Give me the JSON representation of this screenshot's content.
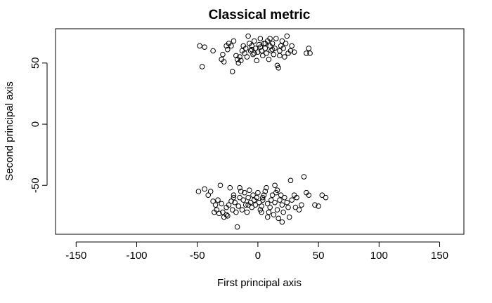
{
  "chart_data": {
    "type": "scatter",
    "title": "Classical metric",
    "xlabel": "First principal axis",
    "ylabel": "Second principal axis",
    "xlim": [
      -167,
      170
    ],
    "ylim": [
      -90,
      78
    ],
    "xticks": [
      -150,
      -100,
      -50,
      0,
      50,
      100,
      150
    ],
    "yticks": [
      -50,
      0,
      50
    ],
    "xtick_labels": [
      "-150",
      "-100",
      "-50",
      "0",
      "50",
      "100",
      "150"
    ],
    "ytick_labels": [
      "-50",
      "0",
      "50"
    ],
    "grid": false,
    "legend": "none",
    "marker": "open-circle",
    "points": [
      [
        -48,
        64
      ],
      [
        -44,
        63
      ],
      [
        -37,
        60
      ],
      [
        -46,
        47
      ],
      [
        -30,
        53
      ],
      [
        -29,
        57
      ],
      [
        -28,
        51
      ],
      [
        -26,
        64
      ],
      [
        -25,
        61
      ],
      [
        -24,
        66
      ],
      [
        -22,
        64
      ],
      [
        -21,
        43
      ],
      [
        -20,
        68
      ],
      [
        -18,
        56
      ],
      [
        -16,
        50
      ],
      [
        -15,
        55
      ],
      [
        -14,
        52
      ],
      [
        -13,
        60
      ],
      [
        -12,
        64
      ],
      [
        -11,
        58
      ],
      [
        -10,
        62
      ],
      [
        -9,
        55
      ],
      [
        -8,
        72
      ],
      [
        -7,
        66
      ],
      [
        -6,
        60
      ],
      [
        -5,
        64
      ],
      [
        -4,
        57
      ],
      [
        -3,
        68
      ],
      [
        -2,
        62
      ],
      [
        -1,
        52
      ],
      [
        0,
        59
      ],
      [
        1,
        65
      ],
      [
        2,
        70
      ],
      [
        3,
        60
      ],
      [
        4,
        56
      ],
      [
        5,
        66
      ],
      [
        6,
        62
      ],
      [
        7,
        58
      ],
      [
        8,
        68
      ],
      [
        9,
        53
      ],
      [
        10,
        64
      ],
      [
        11,
        60
      ],
      [
        12,
        66
      ],
      [
        13,
        57
      ],
      [
        14,
        62
      ],
      [
        15,
        70
      ],
      [
        16,
        48
      ],
      [
        17,
        46
      ],
      [
        18,
        60
      ],
      [
        19,
        64
      ],
      [
        20,
        68
      ],
      [
        21,
        62
      ],
      [
        22,
        55
      ],
      [
        23,
        66
      ],
      [
        24,
        72
      ],
      [
        25,
        58
      ],
      [
        27,
        60
      ],
      [
        28,
        64
      ],
      [
        30,
        59
      ],
      [
        40,
        58
      ],
      [
        42,
        62
      ],
      [
        43,
        58
      ],
      [
        -5,
        61
      ],
      [
        2,
        63
      ],
      [
        12,
        61
      ],
      [
        -17,
        53
      ],
      [
        6,
        66
      ],
      [
        18,
        56
      ],
      [
        -3,
        58
      ],
      [
        10,
        70
      ],
      [
        -49,
        -55
      ],
      [
        -44,
        -53
      ],
      [
        -41,
        -58
      ],
      [
        -39,
        -55
      ],
      [
        -37,
        -63
      ],
      [
        -35,
        -66
      ],
      [
        -34,
        -70
      ],
      [
        -33,
        -62
      ],
      [
        -32,
        -73
      ],
      [
        -31,
        -50
      ],
      [
        -30,
        -65
      ],
      [
        -29,
        -72
      ],
      [
        -28,
        -76
      ],
      [
        -26,
        -68
      ],
      [
        -25,
        -75
      ],
      [
        -23,
        -52
      ],
      [
        -22,
        -63
      ],
      [
        -21,
        -70
      ],
      [
        -20,
        -58
      ],
      [
        -19,
        -64
      ],
      [
        -18,
        -72
      ],
      [
        -17,
        -84
      ],
      [
        -16,
        -67
      ],
      [
        -15,
        -60
      ],
      [
        -14,
        -55
      ],
      [
        -13,
        -70
      ],
      [
        -12,
        -62
      ],
      [
        -11,
        -56
      ],
      [
        -10,
        -66
      ],
      [
        -9,
        -72
      ],
      [
        -8,
        -60
      ],
      [
        -7,
        -54
      ],
      [
        -6,
        -64
      ],
      [
        -5,
        -68
      ],
      [
        -4,
        -58
      ],
      [
        -3,
        -62
      ],
      [
        -2,
        -66
      ],
      [
        -1,
        -60
      ],
      [
        0,
        -56
      ],
      [
        1,
        -64
      ],
      [
        2,
        -70
      ],
      [
        3,
        -67
      ],
      [
        4,
        -62
      ],
      [
        5,
        -58
      ],
      [
        6,
        -55
      ],
      [
        7,
        -52
      ],
      [
        8,
        -65
      ],
      [
        9,
        -72
      ],
      [
        10,
        -68
      ],
      [
        11,
        -62
      ],
      [
        12,
        -58
      ],
      [
        13,
        -74
      ],
      [
        14,
        -64
      ],
      [
        15,
        -56
      ],
      [
        16,
        -70
      ],
      [
        17,
        -77
      ],
      [
        18,
        -62
      ],
      [
        19,
        -58
      ],
      [
        20,
        -66
      ],
      [
        21,
        -72
      ],
      [
        22,
        -60
      ],
      [
        24,
        -64
      ],
      [
        25,
        -68
      ],
      [
        27,
        -46
      ],
      [
        28,
        -62
      ],
      [
        30,
        -58
      ],
      [
        32,
        -60
      ],
      [
        34,
        -70
      ],
      [
        36,
        -66
      ],
      [
        38,
        -43
      ],
      [
        40,
        -56
      ],
      [
        42,
        -58
      ],
      [
        47,
        -66
      ],
      [
        50,
        -67
      ],
      [
        53,
        -58
      ],
      [
        56,
        -60
      ],
      [
        -26,
        -74
      ],
      [
        -36,
        -72
      ],
      [
        3,
        -72
      ],
      [
        20,
        -80
      ],
      [
        -15,
        -52
      ],
      [
        8,
        -76
      ],
      [
        -24,
        -66
      ],
      [
        26,
        -76
      ],
      [
        -8,
        -66
      ],
      [
        14,
        -50
      ],
      [
        4,
        -60
      ],
      [
        -20,
        -60
      ],
      [
        31,
        -68
      ],
      [
        16,
        -54
      ]
    ]
  }
}
